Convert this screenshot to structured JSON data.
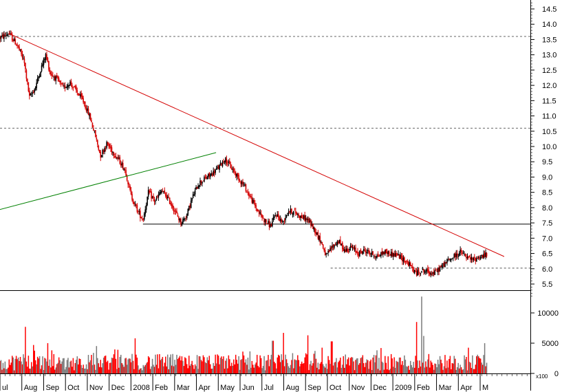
{
  "chart_data": [
    {
      "type": "candlestick",
      "panel": "price",
      "title": "",
      "xlabel": "",
      "ylabel": "",
      "ylim": [
        5.05,
        14.75
      ],
      "y_ticks": [
        "5.5",
        "6.0",
        "6.5",
        "7.0",
        "7.5",
        "8.0",
        "8.5",
        "9.0",
        "9.5",
        "10.0",
        "10.5",
        "11.0",
        "11.5",
        "12.0",
        "12.5",
        "13.0",
        "13.5",
        "14.0",
        "14.5"
      ],
      "x_range": [
        0,
        24.3
      ],
      "x_ticks": [
        {
          "label": "ul",
          "x": 0
        },
        {
          "label": "Aug",
          "x": 1
        },
        {
          "label": "Sep",
          "x": 2
        },
        {
          "label": "Oct",
          "x": 3
        },
        {
          "label": "Nov",
          "x": 4
        },
        {
          "label": "Dec",
          "x": 5
        },
        {
          "label": "2008",
          "x": 6
        },
        {
          "label": "Feb",
          "x": 7
        },
        {
          "label": "Mar",
          "x": 8
        },
        {
          "label": "Apr",
          "x": 9
        },
        {
          "label": "May",
          "x": 10
        },
        {
          "label": "Jun",
          "x": 11
        },
        {
          "label": "Jul",
          "x": 12
        },
        {
          "label": "Aug",
          "x": 13
        },
        {
          "label": "Sep",
          "x": 14
        },
        {
          "label": "Oct",
          "x": 15
        },
        {
          "label": "Nov",
          "x": 16
        },
        {
          "label": "Dec",
          "x": 17
        },
        {
          "label": "2009",
          "x": 18
        },
        {
          "label": "Feb",
          "x": 19
        },
        {
          "label": "Mar",
          "x": 20
        },
        {
          "label": "Apr",
          "x": 21
        },
        {
          "label": "M",
          "x": 22
        }
      ],
      "price_path": [
        [
          0.0,
          13.55
        ],
        [
          0.4,
          13.7
        ],
        [
          0.8,
          13.3
        ],
        [
          1.1,
          12.8
        ],
        [
          1.35,
          11.6
        ],
        [
          1.6,
          11.9
        ],
        [
          1.9,
          12.6
        ],
        [
          2.1,
          13.0
        ],
        [
          2.3,
          12.4
        ],
        [
          2.6,
          12.2
        ],
        [
          2.9,
          11.9
        ],
        [
          3.2,
          12.1
        ],
        [
          3.5,
          11.8
        ],
        [
          3.8,
          11.5
        ],
        [
          4.1,
          11.0
        ],
        [
          4.35,
          10.4
        ],
        [
          4.6,
          9.7
        ],
        [
          4.9,
          10.1
        ],
        [
          5.2,
          9.8
        ],
        [
          5.5,
          9.5
        ],
        [
          5.75,
          9.2
        ],
        [
          6.0,
          8.4
        ],
        [
          6.3,
          7.9
        ],
        [
          6.55,
          7.6
        ],
        [
          6.8,
          8.5
        ],
        [
          7.1,
          8.2
        ],
        [
          7.4,
          8.55
        ],
        [
          7.7,
          8.3
        ],
        [
          8.0,
          7.9
        ],
        [
          8.3,
          7.5
        ],
        [
          8.55,
          7.75
        ],
        [
          8.8,
          8.3
        ],
        [
          9.1,
          8.8
        ],
        [
          9.4,
          8.95
        ],
        [
          9.7,
          9.1
        ],
        [
          10.0,
          9.3
        ],
        [
          10.3,
          9.6
        ],
        [
          10.6,
          9.3
        ],
        [
          10.9,
          9.0
        ],
        [
          11.2,
          8.7
        ],
        [
          11.5,
          8.3
        ],
        [
          11.8,
          7.9
        ],
        [
          12.1,
          7.6
        ],
        [
          12.4,
          7.4
        ],
        [
          12.65,
          7.8
        ],
        [
          12.95,
          7.5
        ],
        [
          13.2,
          7.9
        ],
        [
          13.5,
          7.85
        ],
        [
          13.8,
          7.7
        ],
        [
          14.1,
          7.6
        ],
        [
          14.4,
          7.3
        ],
        [
          14.7,
          6.9
        ],
        [
          14.95,
          6.4
        ],
        [
          15.2,
          6.7
        ],
        [
          15.5,
          6.9
        ],
        [
          15.8,
          6.6
        ],
        [
          16.1,
          6.7
        ],
        [
          16.4,
          6.5
        ],
        [
          16.7,
          6.6
        ],
        [
          17.0,
          6.5
        ],
        [
          17.3,
          6.4
        ],
        [
          17.6,
          6.55
        ],
        [
          17.9,
          6.5
        ],
        [
          18.2,
          6.45
        ],
        [
          18.5,
          6.3
        ],
        [
          18.8,
          6.1
        ],
        [
          19.05,
          5.85
        ],
        [
          19.3,
          5.95
        ],
        [
          19.6,
          5.9
        ],
        [
          19.9,
          5.85
        ],
        [
          20.2,
          6.05
        ],
        [
          20.5,
          6.25
        ],
        [
          20.8,
          6.4
        ],
        [
          21.1,
          6.55
        ],
        [
          21.4,
          6.35
        ],
        [
          21.7,
          6.3
        ],
        [
          22.0,
          6.4
        ],
        [
          22.3,
          6.45
        ]
      ],
      "candle_count": 480,
      "colors": {
        "up": "#000000",
        "down": "#d40000"
      },
      "reference_lines": [
        {
          "kind": "hline",
          "y": 13.6,
          "style": "dashed",
          "color": "#666666"
        },
        {
          "kind": "hline",
          "y": 10.6,
          "style": "dashed",
          "color": "#666666"
        },
        {
          "kind": "segment",
          "x1": 6.55,
          "y1": 7.46,
          "x2": 24.3,
          "y2": 7.46,
          "style": "solid",
          "color": "#000000"
        },
        {
          "kind": "segment",
          "x1": 15.15,
          "y1": 6.02,
          "x2": 24.3,
          "y2": 6.02,
          "style": "dashed",
          "color": "#555555"
        },
        {
          "kind": "trendline",
          "x1": 0.4,
          "y1": 13.7,
          "x2": 23.1,
          "y2": 6.4,
          "color": "#d40000"
        },
        {
          "kind": "trendline",
          "x1": -0.2,
          "y1": 7.9,
          "x2": 9.9,
          "y2": 9.8,
          "color": "#008000"
        }
      ]
    },
    {
      "type": "bar",
      "panel": "volume",
      "title": "",
      "xlabel": "",
      "ylabel": "",
      "ylim": [
        0,
        13600
      ],
      "y_ticks": [
        "0",
        "5000",
        "10000"
      ],
      "axis_unit_label": "x100",
      "bar_count": 480,
      "typical_range": [
        500,
        3200
      ],
      "spikes": [
        {
          "x": 1.15,
          "value": 7700
        },
        {
          "x": 1.55,
          "value": 4700
        },
        {
          "x": 2.2,
          "value": 5000
        },
        {
          "x": 6.2,
          "value": 5800
        },
        {
          "x": 12.5,
          "value": 5400
        },
        {
          "x": 13.0,
          "value": 6700
        },
        {
          "x": 14.1,
          "value": 6300
        },
        {
          "x": 15.2,
          "value": 5300
        },
        {
          "x": 19.1,
          "value": 8500
        },
        {
          "x": 19.3,
          "value": 12700
        },
        {
          "x": 19.4,
          "value": 6200
        },
        {
          "x": 22.2,
          "value": 5000
        }
      ],
      "colors": {
        "up": "#7a7a7a",
        "down": "#ff0000"
      }
    }
  ]
}
